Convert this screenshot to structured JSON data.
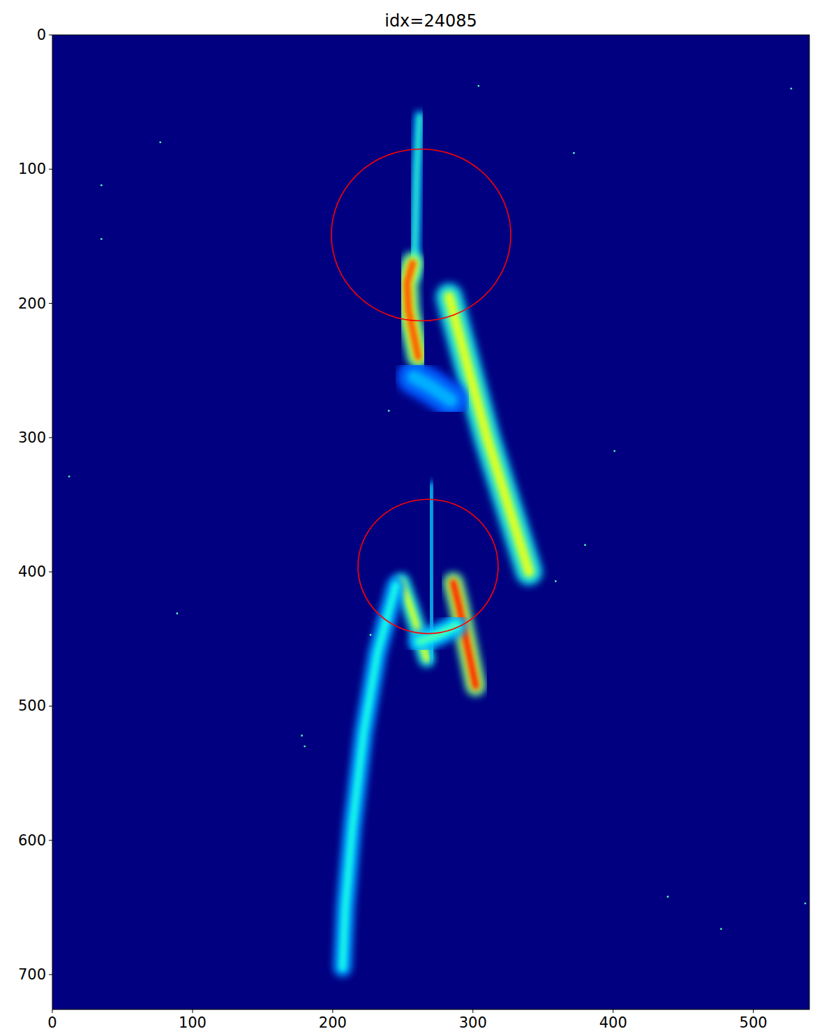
{
  "chart_data": {
    "type": "image",
    "title": "idx=24085",
    "xlim": [
      0,
      540
    ],
    "ylim": [
      726,
      0
    ],
    "xticks": [
      0,
      100,
      200,
      300,
      400,
      500
    ],
    "yticks": [
      0,
      100,
      200,
      300,
      400,
      500,
      600,
      700
    ],
    "grid": false,
    "clim": [
      0,
      1
    ],
    "streaks": [
      {
        "x": [
          262,
          260,
          259,
          258
        ],
        "y": [
          60,
          100,
          140,
          180
        ],
        "intensity": 0.45,
        "width": 4
      },
      {
        "x": [
          257,
          253,
          254,
          258,
          261
        ],
        "y": [
          170,
          185,
          205,
          225,
          240
        ],
        "intensity": 0.8,
        "width": 10
      },
      {
        "x": [
          283,
          288,
          297,
          310,
          325,
          340
        ],
        "y": [
          195,
          215,
          250,
          300,
          350,
          400
        ],
        "intensity": 0.6,
        "width": 12
      },
      {
        "x": [
          258,
          270,
          284
        ],
        "y": [
          255,
          262,
          272
        ],
        "intensity": 0.3,
        "width": 16
      },
      {
        "x": [
          249,
          255,
          262,
          267
        ],
        "y": [
          407,
          425,
          447,
          465
        ],
        "intensity": 0.6,
        "width": 7
      },
      {
        "x": [
          270,
          270,
          271
        ],
        "y": [
          335,
          400,
          465
        ],
        "intensity": 0.4,
        "width": 3
      },
      {
        "x": [
          286,
          290,
          296,
          302
        ],
        "y": [
          408,
          425,
          455,
          485
        ],
        "intensity": 0.85,
        "width": 9
      },
      {
        "x": [
          262,
          275,
          288
        ],
        "y": [
          452,
          447,
          440
        ],
        "intensity": 0.45,
        "width": 10
      },
      {
        "x": [
          245,
          232,
          222,
          214,
          209,
          207
        ],
        "y": [
          410,
          460,
          520,
          590,
          650,
          695
        ],
        "intensity": 0.4,
        "width": 8
      }
    ],
    "hot_pixels": {
      "x": [
        35,
        35,
        12,
        77,
        372,
        401,
        380,
        359,
        240,
        227,
        178,
        180,
        439,
        537,
        477,
        304,
        89,
        527
      ],
      "y": [
        112,
        152,
        329,
        80,
        88,
        310,
        380,
        407,
        280,
        447,
        522,
        530,
        642,
        647,
        666,
        38,
        431,
        40
      ]
    },
    "annotations": [
      {
        "x": 263,
        "y": 149,
        "radius": 64,
        "color": "red"
      },
      {
        "x": 268,
        "y": 396,
        "radius": 50,
        "color": "red"
      }
    ]
  }
}
